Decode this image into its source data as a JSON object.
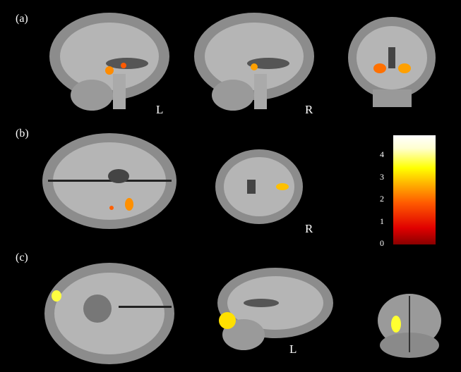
{
  "panels": [
    {
      "label": "(a)",
      "side_label_1": "L",
      "side_label_2": "R"
    },
    {
      "label": "(b)",
      "side_label": "R"
    },
    {
      "label": "(c)",
      "side_label": "L"
    }
  ],
  "colorbar": {
    "ticks": [
      "0",
      "1",
      "2",
      "3",
      "4"
    ],
    "range": [
      0,
      4.8
    ],
    "colors": [
      "#8a0000",
      "#e00000",
      "#ff5a00",
      "#ffb000",
      "#ffff00",
      "#ffffff"
    ]
  }
}
